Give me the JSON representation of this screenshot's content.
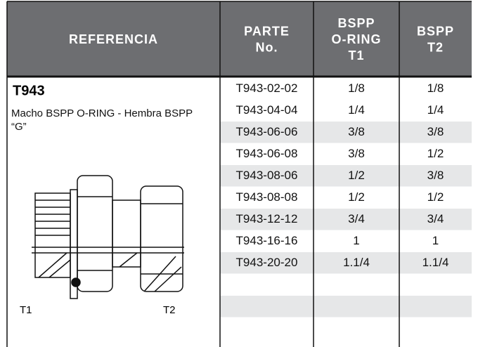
{
  "table": {
    "header": [
      [
        "REFERENCIA"
      ],
      [
        "PARTE",
        "No."
      ],
      [
        "BSPP",
        "O-RING",
        "T1"
      ],
      [
        "BSPP",
        "T2"
      ]
    ],
    "rows": [
      [
        "T943-02-02",
        "1/8",
        "1/8"
      ],
      [
        "T943-04-04",
        "1/4",
        "1/4"
      ],
      [
        "T943-06-06",
        "3/8",
        "3/8"
      ],
      [
        "T943-06-08",
        "3/8",
        "1/2"
      ],
      [
        "T943-08-06",
        "1/2",
        "3/8"
      ],
      [
        "T943-08-08",
        "1/2",
        "1/2"
      ],
      [
        "T943-12-12",
        "3/4",
        "3/4"
      ],
      [
        "T943-16-16",
        "1",
        "1"
      ],
      [
        "T943-20-20",
        "1.1/4",
        "1.1/4"
      ]
    ]
  },
  "reference": {
    "code": "T943",
    "description": "Macho BSPP O-RING - Hembra BSPP “G”",
    "port_labels": [
      "T1",
      "T2"
    ]
  }
}
